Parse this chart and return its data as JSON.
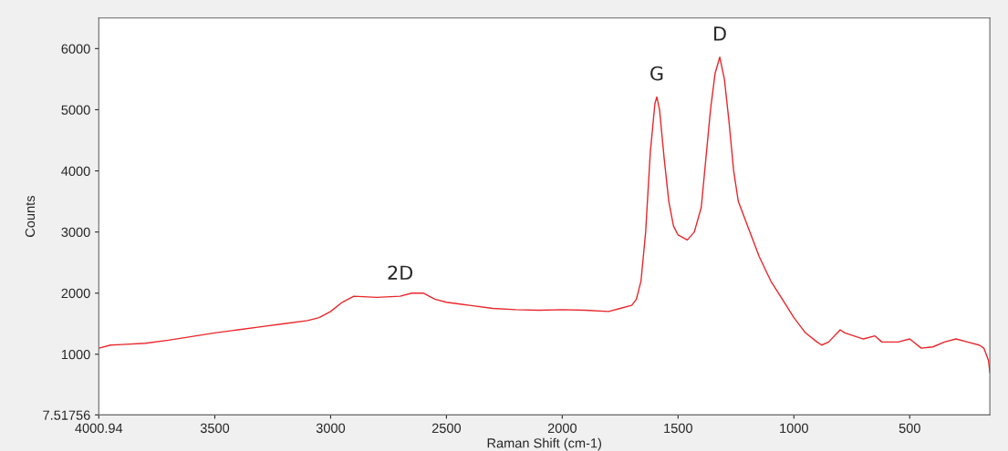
{
  "chart_data": {
    "type": "line",
    "xlabel": "Raman Shift (cm-1)",
    "ylabel": "Counts",
    "x": [
      4000,
      3950,
      3900,
      3800,
      3700,
      3600,
      3500,
      3400,
      3300,
      3200,
      3100,
      3050,
      3000,
      2950,
      2900,
      2800,
      2700,
      2650,
      2600,
      2550,
      2500,
      2400,
      2300,
      2200,
      2100,
      2000,
      1900,
      1800,
      1750,
      1700,
      1680,
      1660,
      1640,
      1620,
      1600,
      1592,
      1580,
      1560,
      1540,
      1520,
      1500,
      1460,
      1430,
      1400,
      1380,
      1360,
      1340,
      1320,
      1300,
      1280,
      1260,
      1240,
      1200,
      1150,
      1100,
      1050,
      1000,
      950,
      900,
      880,
      850,
      800,
      780,
      700,
      650,
      620,
      550,
      500,
      450,
      400,
      350,
      300,
      250,
      200,
      180,
      160,
      154
    ],
    "series": [
      {
        "color": "#e8262b",
        "values": [
          1100,
          1150,
          1160,
          1180,
          1230,
          1290,
          1350,
          1400,
          1450,
          1500,
          1550,
          1600,
          1700,
          1850,
          1950,
          1930,
          1950,
          2000,
          2000,
          1900,
          1850,
          1800,
          1750,
          1730,
          1720,
          1730,
          1720,
          1700,
          1750,
          1800,
          1900,
          2200,
          3000,
          4300,
          5100,
          5210,
          5000,
          4200,
          3500,
          3100,
          2950,
          2870,
          3000,
          3400,
          4200,
          5000,
          5600,
          5860,
          5500,
          4800,
          4000,
          3500,
          3100,
          2600,
          2200,
          1900,
          1600,
          1350,
          1200,
          1150,
          1200,
          1400,
          1350,
          1250,
          1300,
          1200,
          1200,
          1250,
          1100,
          1120,
          1200,
          1250,
          1200,
          1150,
          1100,
          900,
          700
        ]
      }
    ],
    "xlim": [
      4000.94,
      154
    ],
    "ylim": [
      7.51756,
      6500
    ],
    "xticks": [
      {
        "value": 4000.94,
        "label": "4000.94"
      },
      3500,
      3000,
      2500,
      2000,
      1500,
      1000,
      500
    ],
    "yticks": [
      {
        "value": 7.51756,
        "label": "7.51756"
      },
      1000,
      2000,
      3000,
      4000,
      5000,
      6000
    ],
    "annotations": [
      {
        "text": "G",
        "x": 1592,
        "y": 5210
      },
      {
        "text": "D",
        "x": 1320,
        "y": 5860
      },
      {
        "text": "2D",
        "x": 2700,
        "y": 1950
      }
    ],
    "grid": false,
    "legend": false
  }
}
